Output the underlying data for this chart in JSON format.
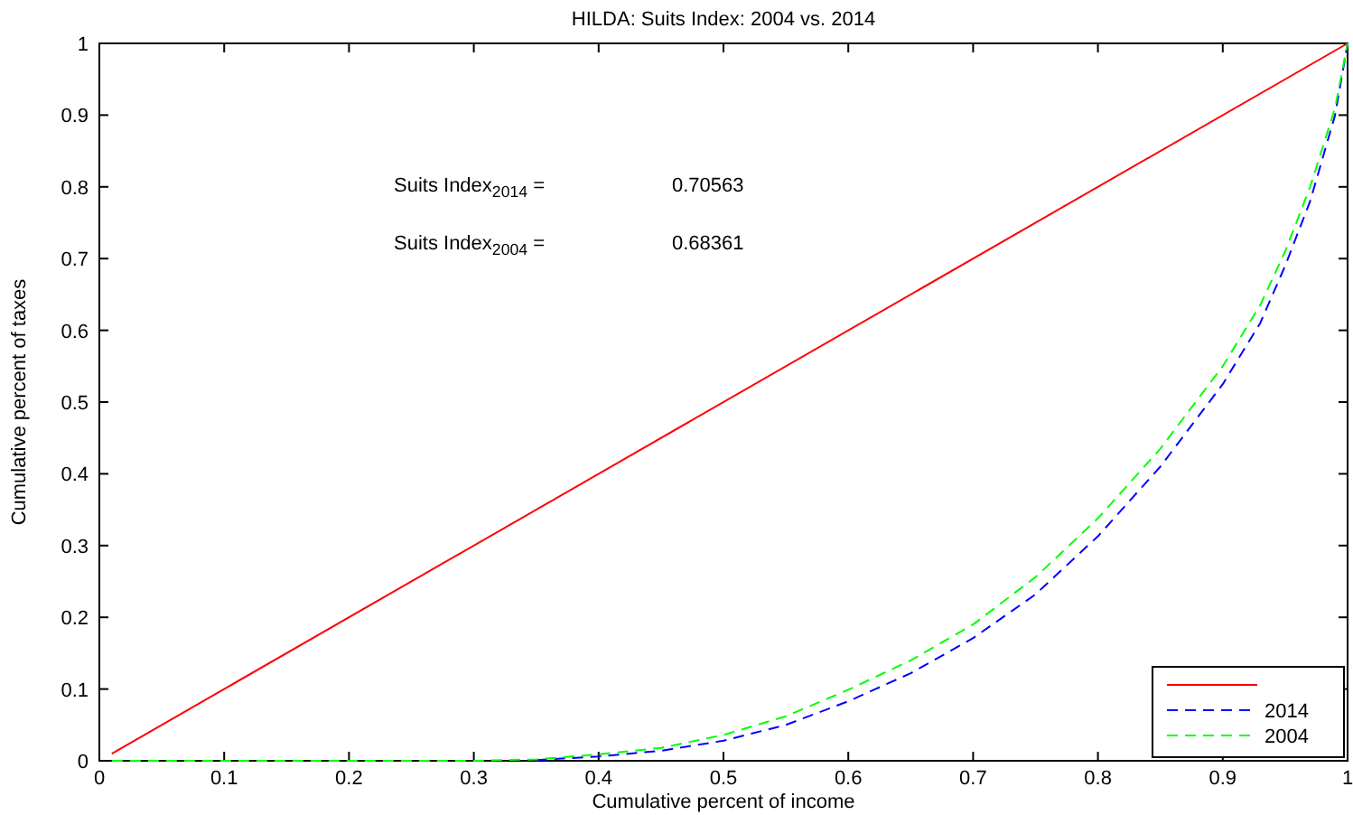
{
  "chart_data": {
    "type": "line",
    "title": "HILDA: Suits Index: 2004 vs. 2014",
    "xlabel": "Cumulative percent of income",
    "ylabel": "Cumulative percent of taxes",
    "annotations": [
      "Suits Index$_{2014}$ =",
      "0.70563",
      "Suits Index$_{2004}$ =",
      "0.68361"
    ],
    "xlim": [
      0,
      1
    ],
    "ylim": [
      0,
      1
    ],
    "xticks": [
      0,
      0.1,
      0.2,
      0.3,
      0.4,
      0.5,
      0.6,
      0.7,
      0.8,
      0.9,
      1
    ],
    "yticks": [
      0,
      0.1,
      0.2,
      0.3,
      0.4,
      0.5,
      0.6,
      0.7,
      0.8,
      0.9,
      1
    ],
    "grid": false,
    "legend": "bottom right",
    "series": [
      {
        "color": "#ff0000",
        "line_style": "solid",
        "x": [
          0.01,
          1
        ],
        "values": [
          0.01,
          1
        ]
      },
      {
        "name": "2014",
        "color": "#0000ff",
        "line_style": "dashed",
        "x": [
          0.35,
          0.4,
          0.45,
          0.5,
          0.55,
          0.6,
          0.65,
          0.7,
          0.75,
          0.8,
          0.85,
          0.9,
          0.93,
          0.95,
          0.97,
          0.99,
          1
        ],
        "values": [
          0.001,
          0.006,
          0.014,
          0.028,
          0.05,
          0.083,
          0.122,
          0.171,
          0.232,
          0.313,
          0.41,
          0.525,
          0.61,
          0.69,
          0.78,
          0.9,
          1
        ]
      },
      {
        "name": "2004",
        "color": "#00ff00",
        "line_style": "dashed",
        "x": [
          0.01,
          0.1,
          0.2,
          0.3,
          0.35,
          0.4,
          0.45,
          0.5,
          0.55,
          0.6,
          0.65,
          0.7,
          0.75,
          0.8,
          0.85,
          0.9,
          0.93,
          0.95,
          0.97,
          0.99,
          1
        ],
        "values": [
          0,
          0,
          0,
          0,
          0.002,
          0.009,
          0.018,
          0.036,
          0.062,
          0.099,
          0.14,
          0.19,
          0.256,
          0.338,
          0.435,
          0.55,
          0.635,
          0.71,
          0.8,
          0.91,
          1
        ]
      }
    ]
  }
}
